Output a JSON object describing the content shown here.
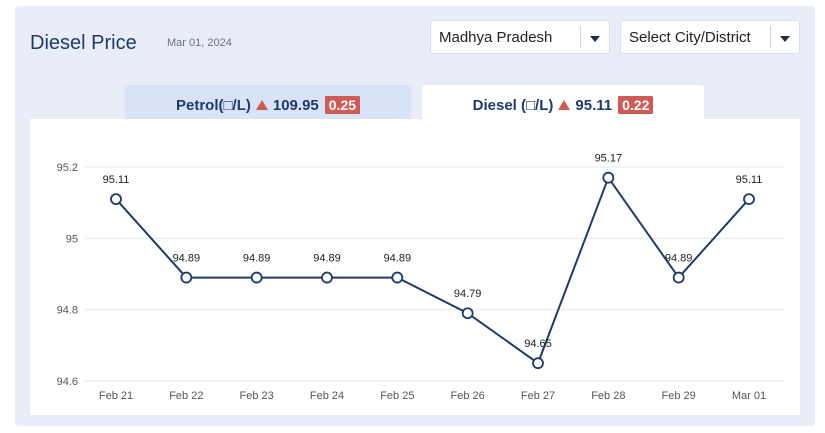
{
  "header": {
    "title": "Diesel Price",
    "date": "Mar 01, 2024"
  },
  "filters": {
    "state": "Madhya Pradesh",
    "city": "Select City/District"
  },
  "tabs": {
    "petrol": {
      "label": "Petrol(□/L)",
      "price": "109.95",
      "change": "0.25"
    },
    "diesel": {
      "label": "Diesel (□/L)",
      "price": "95.11",
      "change": "0.22"
    }
  },
  "colors": {
    "accent": "#1f3a6b",
    "increase": "#cf5b55",
    "line": "#1f3a6b",
    "grid": "#e5e7eb"
  },
  "chart_data": {
    "type": "line",
    "categories": [
      "Feb 21",
      "Feb 22",
      "Feb 23",
      "Feb 24",
      "Feb 25",
      "Feb 26",
      "Feb 27",
      "Feb 28",
      "Feb 29",
      "Mar 01"
    ],
    "values": [
      95.11,
      94.89,
      94.89,
      94.89,
      94.89,
      94.79,
      94.65,
      95.17,
      94.89,
      95.11
    ],
    "data_labels": [
      "95.11",
      "94.89",
      "94.89",
      "94.89",
      "94.89",
      "94.79",
      "94.65",
      "95.17",
      "94.89",
      "95.11"
    ],
    "y_ticks": [
      "94.6",
      "94.8",
      "95",
      "95.2"
    ],
    "ylim": [
      94.6,
      95.2
    ],
    "grid": true,
    "title": "",
    "xlabel": "",
    "ylabel": ""
  }
}
